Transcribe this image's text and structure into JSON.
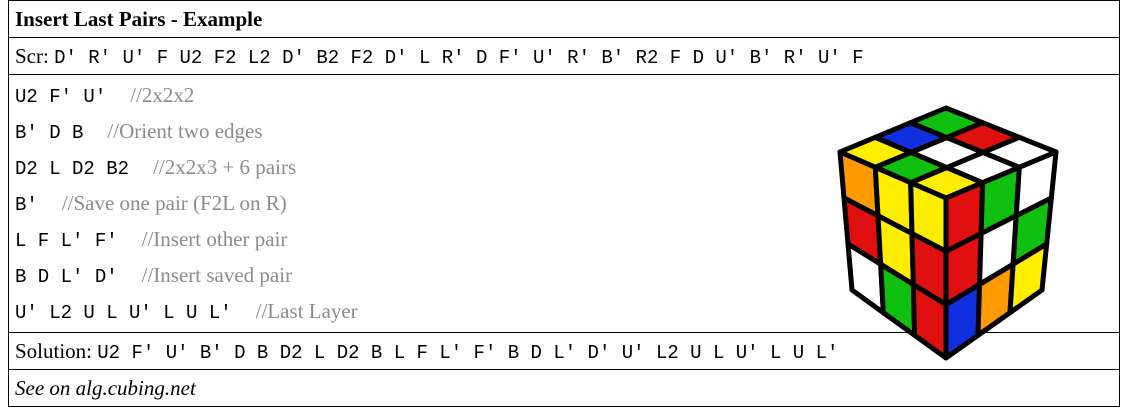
{
  "header": {
    "title": "Insert Last Pairs - Example"
  },
  "scramble": {
    "label": "Scr:",
    "moves": "D' R' U' F U2 F2 L2 D' B2 F2 D' L R' D F' U' R' B' R2 F D U' B' R' U' F"
  },
  "steps": [
    {
      "moves": "U2 F' U'",
      "comment": "//2x2x2"
    },
    {
      "moves": "B' D B",
      "comment": "//Orient two edges"
    },
    {
      "moves": "D2 L D2 B2",
      "comment": "//2x2x3 + 6 pairs"
    },
    {
      "moves": "B'",
      "comment": "//Save one pair (F2L on R)"
    },
    {
      "moves": "L F L' F'",
      "comment": "//Insert other pair"
    },
    {
      "moves": "B D L' D'",
      "comment": "//Insert saved pair"
    },
    {
      "moves": "U' L2 U L U' L U L'",
      "comment": "//Last Layer"
    }
  ],
  "solution": {
    "label": "Solution:",
    "moves": "U2 F' U' B' D B D2 L D2 B L F L' F' B D L' D' U' L2 U L U' L U L'"
  },
  "footer": {
    "link": "See on alg.cubing.net"
  }
}
